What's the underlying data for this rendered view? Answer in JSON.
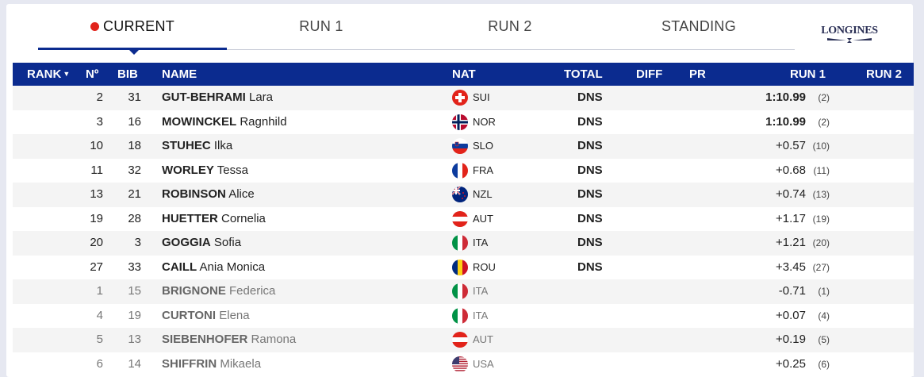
{
  "tabs": [
    {
      "label": "CURRENT",
      "active": true,
      "live": true
    },
    {
      "label": "RUN 1"
    },
    {
      "label": "RUN 2"
    },
    {
      "label": "STANDING"
    }
  ],
  "logo": "LONGINES",
  "columns": {
    "rank": "RANK",
    "no": "Nº",
    "bib": "BIB",
    "name": "NAME",
    "nat": "NAT",
    "total": "TOTAL",
    "diff": "DIFF",
    "pr": "PR",
    "run1": "RUN 1",
    "run2": "RUN 2"
  },
  "rows": [
    {
      "no": "2",
      "bib": "31",
      "last": "GUT-BEHRAMI",
      "first": "Lara",
      "nat": "SUI",
      "total": "DNS",
      "run1": "1:10.99",
      "run1_rank": "(2)",
      "best": true,
      "done": false
    },
    {
      "no": "3",
      "bib": "16",
      "last": "MOWINCKEL",
      "first": "Ragnhild",
      "nat": "NOR",
      "total": "DNS",
      "run1": "1:10.99",
      "run1_rank": "(2)",
      "best": true,
      "done": false
    },
    {
      "no": "10",
      "bib": "18",
      "last": "STUHEC",
      "first": "Ilka",
      "nat": "SLO",
      "total": "DNS",
      "run1": "+0.57",
      "run1_rank": "(10)",
      "done": false
    },
    {
      "no": "11",
      "bib": "32",
      "last": "WORLEY",
      "first": "Tessa",
      "nat": "FRA",
      "total": "DNS",
      "run1": "+0.68",
      "run1_rank": "(11)",
      "done": false
    },
    {
      "no": "13",
      "bib": "21",
      "last": "ROBINSON",
      "first": "Alice",
      "nat": "NZL",
      "total": "DNS",
      "run1": "+0.74",
      "run1_rank": "(13)",
      "done": false
    },
    {
      "no": "19",
      "bib": "28",
      "last": "HUETTER",
      "first": "Cornelia",
      "nat": "AUT",
      "total": "DNS",
      "run1": "+1.17",
      "run1_rank": "(19)",
      "done": false
    },
    {
      "no": "20",
      "bib": "3",
      "last": "GOGGIA",
      "first": "Sofia",
      "nat": "ITA",
      "total": "DNS",
      "run1": "+1.21",
      "run1_rank": "(20)",
      "done": false
    },
    {
      "no": "27",
      "bib": "33",
      "last": "CAILL",
      "first": "Ania Monica",
      "nat": "ROU",
      "total": "DNS",
      "run1": "+3.45",
      "run1_rank": "(27)",
      "done": false
    },
    {
      "no": "1",
      "bib": "15",
      "last": "BRIGNONE",
      "first": "Federica",
      "nat": "ITA",
      "total": "",
      "run1": "-0.71",
      "run1_rank": "(1)",
      "done": true
    },
    {
      "no": "4",
      "bib": "19",
      "last": "CURTONI",
      "first": "Elena",
      "nat": "ITA",
      "total": "",
      "run1": "+0.07",
      "run1_rank": "(4)",
      "done": true
    },
    {
      "no": "5",
      "bib": "13",
      "last": "SIEBENHOFER",
      "first": "Ramona",
      "nat": "AUT",
      "total": "",
      "run1": "+0.19",
      "run1_rank": "(5)",
      "done": true
    },
    {
      "no": "6",
      "bib": "14",
      "last": "SHIFFRIN",
      "first": "Mikaela",
      "nat": "USA",
      "total": "",
      "run1": "+0.25",
      "run1_rank": "(6)",
      "done": true
    }
  ],
  "colors": {
    "accent": "#0b2b8f",
    "live": "#e1231b"
  }
}
